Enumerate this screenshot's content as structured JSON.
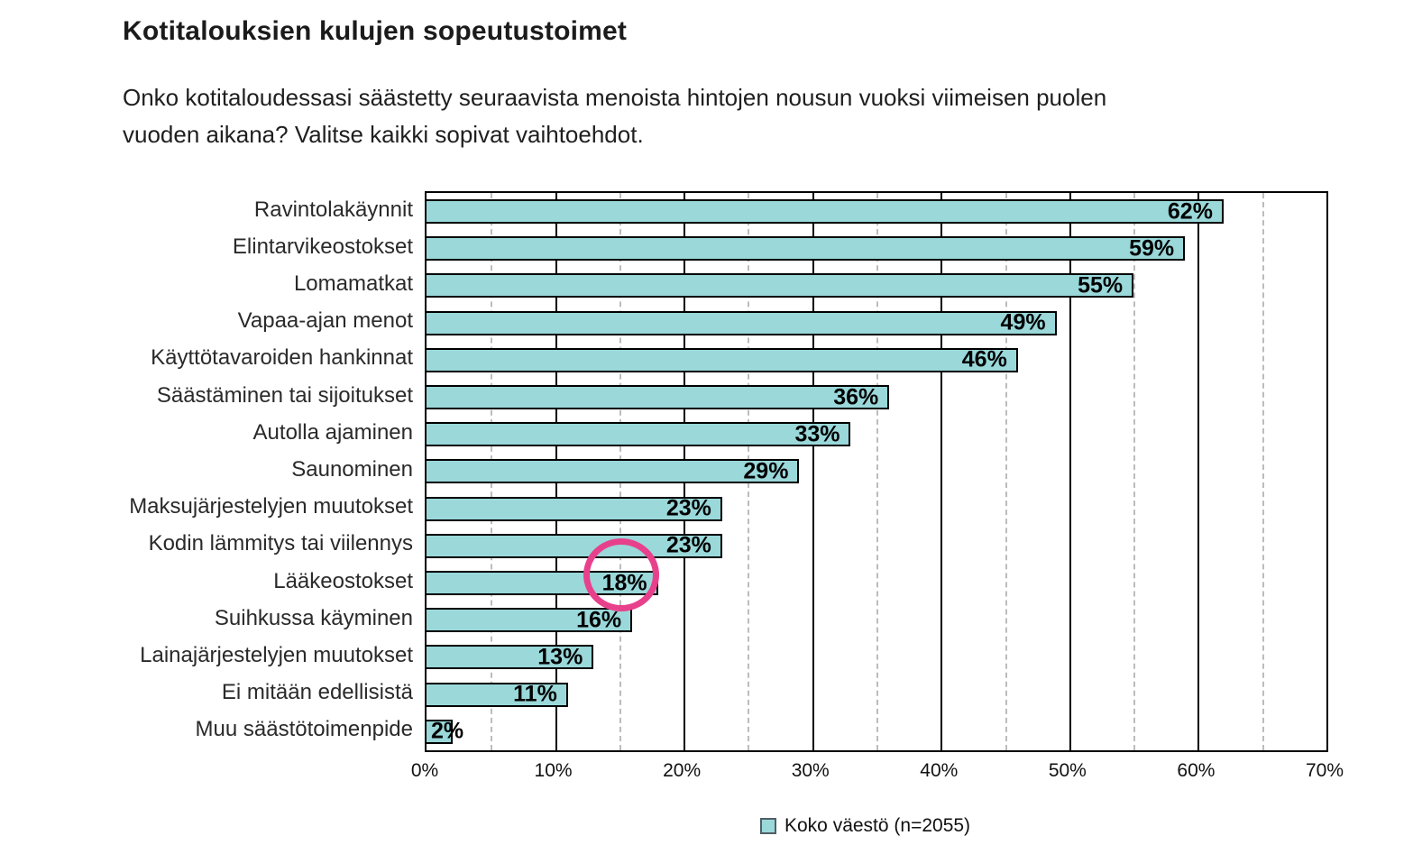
{
  "header": {
    "title": "Kotitalouksien kulujen sopeutustoimet",
    "subtitle_line1": "Onko kotitaloudessasi säästetty seuraavista menoista hintojen nousun vuoksi viimeisen puolen",
    "subtitle_line2": "vuoden aikana? Valitse kaikki sopivat vaihtoehdot."
  },
  "chart_data": {
    "type": "bar",
    "orientation": "horizontal",
    "title": "Kotitalouksien kulujen sopeutustoimet",
    "question": "Onko kotitaloudessasi säästetty seuraavista menoista hintojen nousun vuoksi viimeisen puolen vuoden aikana? Valitse kaikki sopivat vaihtoehdot.",
    "categories": [
      "Ravintolakäynnit",
      "Elintarvikeostokset",
      "Lomamatkat",
      "Vapaa-ajan menot",
      "Käyttötavaroiden hankinnat",
      "Säästäminen tai sijoitukset",
      "Autolla ajaminen",
      "Saunominen",
      "Maksujärjestelyjen muutokset",
      "Kodin lämmitys tai viilennys",
      "Lääkeostokset",
      "Suihkussa käyminen",
      "Lainajärjestelyjen muutokset",
      "Ei mitään edellisistä",
      "Muu säästötoimenpide"
    ],
    "values": [
      62,
      59,
      55,
      49,
      46,
      36,
      33,
      29,
      23,
      23,
      18,
      16,
      13,
      11,
      2
    ],
    "value_labels": [
      "62%",
      "59%",
      "55%",
      "49%",
      "46%",
      "36%",
      "33%",
      "29%",
      "23%",
      "23%",
      "18%",
      "16%",
      "13%",
      "11%",
      "2%"
    ],
    "series_name": "Koko väestö (n=2055)",
    "xlim": [
      0,
      70
    ],
    "x_tick_values": [
      0,
      10,
      20,
      30,
      40,
      50,
      60,
      70
    ],
    "x_tick_labels": [
      "0%",
      "10%",
      "20%",
      "30%",
      "40%",
      "50%",
      "60%",
      "70%"
    ],
    "grid": {
      "major_percent_step": 10,
      "minor_percent_step": 5,
      "major_style": "solid-black",
      "minor_style": "dashed-gray"
    },
    "legend_position": "bottom",
    "annotation": {
      "shape": "circle-outline",
      "color": "#e8418c",
      "highlights_category": "Lääkeostokset",
      "highlights_value": "18%"
    },
    "colors": {
      "bar_fill": "#9ad8da",
      "bar_border": "#000000",
      "major_grid": "#000000",
      "minor_grid": "#bcbcbc",
      "annotation": "#e8418c"
    }
  },
  "legend": {
    "label": "Koko väestö (n=2055)"
  }
}
